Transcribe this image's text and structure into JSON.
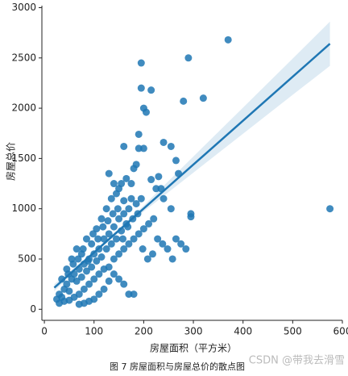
{
  "chart_data": {
    "type": "scatter",
    "x_label": "房屋面积（平方米）",
    "y_label": "房屋总价",
    "caption": "图 7 房屋面积与房屋总价的散点图",
    "watermark": "CSDN @带我去滑雪",
    "color": "#1f77b4",
    "xlim": [
      -5,
      600
    ],
    "ylim": [
      -110,
      3020
    ],
    "xticks": [
      0,
      100,
      200,
      300,
      400,
      500,
      600
    ],
    "yticks": [
      0,
      500,
      1000,
      1500,
      2000,
      2500,
      3000
    ],
    "x": [
      25,
      30,
      35,
      40,
      45,
      50,
      55,
      60,
      65,
      70,
      75,
      80,
      85,
      90,
      95,
      100,
      105,
      110,
      115,
      120,
      125,
      130,
      135,
      140,
      145,
      150,
      155,
      160,
      165,
      170,
      40,
      50,
      60,
      70,
      80,
      90,
      100,
      110,
      120,
      130,
      140,
      150,
      160,
      170,
      180,
      190,
      200,
      210,
      220,
      45,
      55,
      65,
      75,
      85,
      95,
      105,
      115,
      125,
      135,
      145,
      155,
      165,
      175,
      185,
      195,
      130,
      140,
      150,
      160,
      30,
      35,
      48,
      58,
      68,
      78,
      88,
      98,
      108,
      118,
      128,
      138,
      148,
      158,
      168,
      178,
      188,
      198,
      208,
      218,
      228,
      238,
      248,
      258,
      265,
      275,
      285,
      160,
      170,
      180,
      150,
      140,
      130,
      120,
      110,
      100,
      90,
      80,
      70,
      190,
      200,
      160,
      240,
      255,
      230,
      175,
      215,
      180,
      185,
      265,
      270,
      255,
      240,
      195,
      290,
      370,
      320,
      280,
      200,
      205,
      195,
      215,
      575,
      295,
      295,
      190,
      225,
      235
    ],
    "values": [
      100,
      150,
      120,
      200,
      250,
      180,
      300,
      350,
      280,
      400,
      320,
      450,
      380,
      500,
      420,
      550,
      480,
      600,
      520,
      700,
      600,
      750,
      650,
      820,
      700,
      900,
      780,
      950,
      850,
      1000,
      80,
      90,
      120,
      150,
      200,
      250,
      300,
      350,
      400,
      420,
      500,
      550,
      600,
      650,
      700,
      750,
      800,
      850,
      900,
      400,
      500,
      600,
      550,
      700,
      650,
      800,
      900,
      1000,
      1100,
      1150,
      1250,
      1300,
      1100,
      1050,
      1100,
      1350,
      1250,
      1200,
      1080,
      60,
      300,
      350,
      450,
      500,
      600,
      480,
      750,
      700,
      820,
      880,
      950,
      1000,
      700,
      820,
      900,
      950,
      600,
      500,
      550,
      700,
      650,
      600,
      500,
      700,
      650,
      600,
      250,
      150,
      150,
      300,
      350,
      280,
      200,
      150,
      100,
      80,
      60,
      50,
      1600,
      1600,
      1620,
      1660,
      1620,
      1320,
      1250,
      1290,
      1400,
      1440,
      1480,
      1350,
      1000,
      1100,
      2450,
      2500,
      2680,
      2100,
      2070,
      2000,
      1960,
      2200,
      2180,
      1000,
      950,
      920,
      1740,
      1200,
      1200
    ],
    "regression": {
      "x": [
        20,
        100,
        200,
        300,
        400,
        500,
        575
      ],
      "values": [
        215,
        565,
        1002,
        1439,
        1876,
        2313,
        2641
      ],
      "lower": [
        180,
        553,
        972,
        1359,
        1746,
        2133,
        2421
      ],
      "upper": [
        250,
        577,
        1032,
        1519,
        2006,
        2493,
        2861
      ]
    }
  }
}
